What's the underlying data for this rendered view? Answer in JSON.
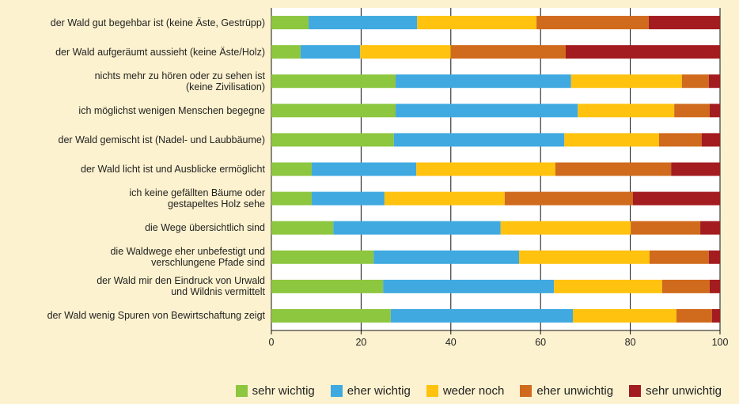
{
  "chart_data": {
    "type": "stacked_barh",
    "categories": [
      "der Wald gut begehbar ist (keine Äste, Gestrüpp)",
      "der Wald aufgeräumt aussieht (keine Äste/Holz)",
      "nichts mehr zu hören oder zu sehen ist\n(keine Zivilisation)",
      "ich möglichst wenigen Menschen begegne",
      "der Wald gemischt ist (Nadel- und Laubbäume)",
      "der Wald licht ist und Ausblicke ermöglicht",
      "ich keine gefällten Bäume oder\ngestapeltes Holz sehe",
      "die Wege übersichtlich sind",
      "die Waldwege eher unbefestigt und\nverschlungene Pfade sind",
      "der Wald mir den Eindruck von Urwald\nund Wildnis vermittelt",
      "der Wald wenig Spuren von Bewirtschaftung zeigt"
    ],
    "series": [
      {
        "name": "sehr wichtig",
        "color": "#8dc63f",
        "values": [
          8.3,
          6.5,
          27.7,
          27.7,
          27.3,
          9.0,
          9.0,
          13.8,
          22.8,
          24.9,
          26.6
        ]
      },
      {
        "name": "eher wichtig",
        "color": "#3fa9e0",
        "values": [
          24.2,
          13.3,
          39.1,
          40.6,
          38.0,
          23.3,
          16.2,
          37.3,
          32.4,
          38.1,
          40.6
        ]
      },
      {
        "name": "weder noch",
        "color": "#ffc20e",
        "values": [
          26.6,
          20.2,
          24.7,
          21.5,
          21.1,
          31.0,
          26.8,
          29.0,
          29.1,
          24.1,
          23.1
        ]
      },
      {
        "name": "eher unwichtig",
        "color": "#d06a1c",
        "values": [
          25.0,
          25.6,
          6.0,
          7.9,
          9.5,
          25.8,
          28.6,
          15.5,
          13.2,
          10.6,
          7.9
        ]
      },
      {
        "name": "sehr unwichtig",
        "color": "#a31c1f",
        "values": [
          15.9,
          34.4,
          2.5,
          2.3,
          4.1,
          10.9,
          19.4,
          4.4,
          2.5,
          2.3,
          1.8
        ]
      }
    ],
    "xlim": [
      0,
      100
    ],
    "xticks": [
      0,
      20,
      40,
      60,
      80,
      100
    ],
    "grid": true
  }
}
